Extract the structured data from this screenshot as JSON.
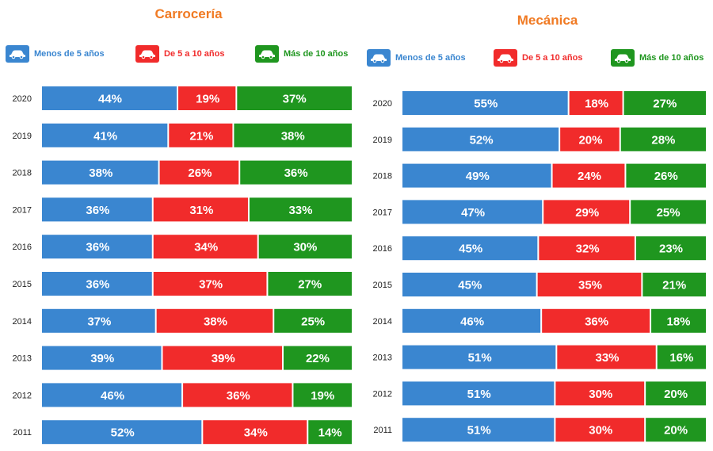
{
  "colors": {
    "title": "#f07a23",
    "menos_5": "#3a86d0",
    "de_5_10": "#f12b2b",
    "mas_10": "#1f961f"
  },
  "legend_icon": "car-icon",
  "chart_data": [
    {
      "type": "bar",
      "stacked": true,
      "orientation": "horizontal",
      "title": "Carrocería",
      "categories": [
        "2020",
        "2019",
        "2018",
        "2017",
        "2016",
        "2015",
        "2014",
        "2013",
        "2012",
        "2011"
      ],
      "series": [
        {
          "name": "Menos de 5 años",
          "values": [
            44,
            41,
            38,
            36,
            36,
            36,
            37,
            39,
            46,
            52
          ],
          "labels": [
            "44%",
            "41%",
            "38%",
            "36%",
            "36%",
            "36%",
            "37%",
            "39%",
            "46%",
            "52%"
          ]
        },
        {
          "name": "De 5 a 10 años",
          "values": [
            19,
            21,
            26,
            31,
            34,
            37,
            38,
            39,
            36,
            34
          ],
          "labels": [
            "19%",
            "21%",
            "26%",
            "31%",
            "34%",
            "37%",
            "38%",
            "39%",
            "36%",
            "34%"
          ]
        },
        {
          "name": "Más de 10 años",
          "values": [
            37,
            38,
            36,
            33,
            30,
            27,
            25,
            22,
            19,
            14
          ],
          "labels": [
            "37%",
            "38%",
            "36%",
            "33%",
            "30%",
            "27%",
            "25%",
            "22%",
            "19%",
            "14%"
          ]
        }
      ]
    },
    {
      "type": "bar",
      "stacked": true,
      "orientation": "horizontal",
      "title": "Mecánica",
      "categories": [
        "2020",
        "2019",
        "2018",
        "2017",
        "2016",
        "2015",
        "2014",
        "2013",
        "2012",
        "2011"
      ],
      "series": [
        {
          "name": "Menos de 5 años",
          "values": [
            55,
            52,
            49,
            47,
            45,
            45,
            46,
            51,
            51,
            51
          ],
          "labels": [
            "55%",
            "52%",
            "49%",
            "47%",
            "45%",
            "45%",
            "46%",
            "51%",
            "51%",
            "51%"
          ]
        },
        {
          "name": "De 5 a 10 años",
          "values": [
            18,
            20,
            24,
            29,
            32,
            35,
            36,
            33,
            30,
            30
          ],
          "labels": [
            "18%",
            "20%",
            "24%",
            "29%",
            "32%",
            "35%",
            "36%",
            "33%",
            "30%",
            "30%"
          ]
        },
        {
          "name": "Más de 10 años",
          "values": [
            27,
            28,
            26,
            25,
            23,
            21,
            18,
            16,
            20,
            20
          ],
          "labels": [
            "27%",
            "28%",
            "26%",
            "25%",
            "23%",
            "21%",
            "18%",
            "16%",
            "20%",
            "20%"
          ]
        }
      ]
    }
  ]
}
